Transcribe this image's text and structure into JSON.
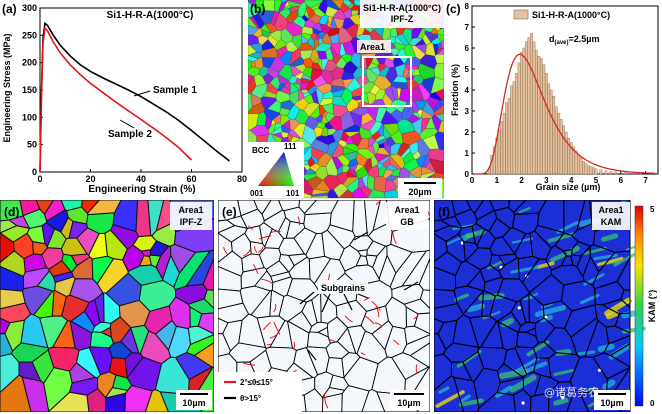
{
  "panels": {
    "a": {
      "label": "(a)",
      "title": "Si1-H-R-A(1000°C)",
      "xlabel": "Engineering Strain (%)",
      "ylabel": "Engineering Stress (MPa)",
      "series_labels": [
        "Sample 1",
        "Sample 2"
      ]
    },
    "b": {
      "label": "(b)",
      "title_line1": "Si1-H-R-A(1000°C)",
      "title_line2": "IPF-Z",
      "area_label": "Area1",
      "key_bcc": "BCC",
      "key_111": "111",
      "key_001": "001",
      "key_101": "101",
      "scale": "20µm"
    },
    "c": {
      "label": "(c)",
      "legend": "Si1-H-R-A(1000°C)",
      "annotation": "d(ave)=2.5µm",
      "annotation_main": "d",
      "annotation_sub": "(ave)",
      "annotation_rest": "=2.5µm",
      "xlabel": "Grain size (µm)",
      "ylabel": "Fraction (%)"
    },
    "d": {
      "label": "(d)",
      "title_line1": "Area1",
      "title_line2": "IPF-Z",
      "scale": "10µm"
    },
    "e": {
      "label": "(e)",
      "title_line1": "Area1",
      "title_line2": "GB",
      "subgrains": "Subgrains",
      "legend_low": "2°≤θ≤15°",
      "legend_high": "θ>15°",
      "scale": "10µm"
    },
    "f": {
      "label": "(f)",
      "title_line1": "Area1",
      "title_line2": "KAM",
      "cbar_max": "5",
      "cbar_min": "0",
      "cbar_label": "KAM (°)",
      "scale": "10µm",
      "watermark": "@诸葛务农"
    }
  },
  "colors": {
    "sample1": "#000000",
    "sample2": "#e8141b",
    "hist_bar": "#e5c29f",
    "hist_edge": "#8a6a4a",
    "fit": "#d62728",
    "gb_low": "#e8141b",
    "gb_high": "#000000",
    "kam_bg": "#1c2ed6"
  },
  "chart_data": [
    {
      "type": "line",
      "title": "Si1-H-R-A(1000°C)",
      "xlabel": "Engineering Strain (%)",
      "ylabel": "Engineering Stress (MPa)",
      "xlim": [
        0,
        80
      ],
      "ylim": [
        0,
        300
      ],
      "xticks": [
        0,
        20,
        40,
        60,
        80
      ],
      "yticks": [
        0,
        50,
        100,
        150,
        200,
        250,
        300
      ],
      "series": [
        {
          "name": "Sample 1",
          "x": [
            0,
            0.6,
            1.2,
            2,
            3,
            5,
            8,
            12,
            16,
            20,
            25,
            30,
            35,
            40,
            45,
            50,
            55,
            60,
            65,
            70,
            74,
            75
          ],
          "y": [
            0,
            150,
            245,
            272,
            268,
            252,
            232,
            212,
            196,
            184,
            172,
            161,
            150,
            138,
            124,
            110,
            94,
            76,
            57,
            38,
            24,
            20
          ]
        },
        {
          "name": "Sample 2",
          "x": [
            0,
            0.6,
            1.2,
            2,
            3,
            5,
            8,
            12,
            16,
            20,
            25,
            30,
            35,
            40,
            45,
            50,
            55,
            60
          ],
          "y": [
            0,
            140,
            235,
            263,
            258,
            240,
            218,
            196,
            178,
            162,
            145,
            128,
            112,
            96,
            80,
            63,
            44,
            22
          ]
        }
      ]
    },
    {
      "type": "bar",
      "title": "",
      "xlabel": "Grain size (µm)",
      "ylabel": "Fraction (%)",
      "xlim": [
        0,
        7.5
      ],
      "ylim": [
        0,
        8
      ],
      "xticks": [
        0,
        1,
        2,
        3,
        4,
        5,
        6,
        7
      ],
      "yticks": [
        0,
        1,
        2,
        3,
        4,
        5,
        6,
        7,
        8
      ],
      "series": [
        {
          "name": "Si1-H-R-A(1000°C)",
          "x": [
            0.7,
            0.8,
            0.9,
            1.0,
            1.1,
            1.2,
            1.3,
            1.4,
            1.5,
            1.6,
            1.7,
            1.8,
            1.9,
            2.0,
            2.1,
            2.2,
            2.3,
            2.4,
            2.5,
            2.6,
            2.7,
            2.8,
            2.9,
            3.0,
            3.1,
            3.2,
            3.3,
            3.4,
            3.5,
            3.6,
            3.7,
            3.8,
            3.9,
            4.0,
            4.1,
            4.2,
            4.3,
            4.4,
            4.5,
            4.6,
            4.7,
            4.8,
            4.9,
            5.0,
            5.2,
            5.4,
            5.6,
            5.8,
            6.2,
            6.8
          ],
          "values": [
            0.3,
            0.9,
            1.3,
            1.7,
            2.1,
            2.5,
            2.9,
            3.4,
            3.6,
            4.2,
            4.4,
            4.8,
            5.3,
            5.8,
            6.0,
            6.3,
            6.5,
            6.7,
            6.3,
            5.9,
            5.6,
            5.5,
            5.2,
            4.8,
            4.3,
            4.0,
            3.7,
            3.2,
            2.9,
            2.6,
            2.3,
            2.0,
            1.7,
            1.5,
            1.3,
            1.1,
            0.9,
            0.8,
            0.6,
            0.5,
            0.4,
            0.35,
            0.3,
            0.25,
            0.2,
            0.15,
            0.12,
            0.1,
            0.08,
            0.05
          ]
        }
      ]
    }
  ]
}
